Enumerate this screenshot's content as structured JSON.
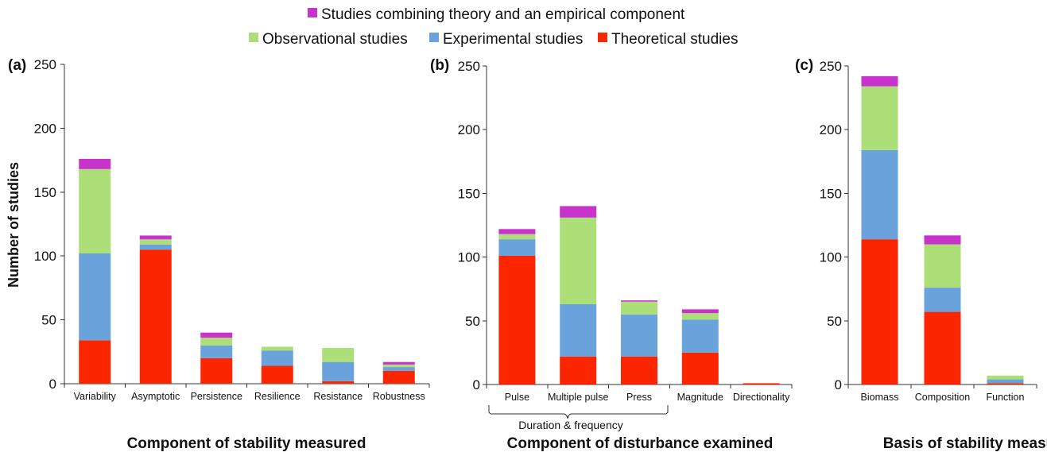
{
  "legend": [
    {
      "label": "Studies combining theory and an empirical component",
      "color": "#c833cc"
    },
    {
      "label": "Observational studies",
      "color": "#addf79"
    },
    {
      "label": "Experimental studies",
      "color": "#6aa2dc"
    },
    {
      "label": "Theoretical studies",
      "color": "#fb2600"
    }
  ],
  "ylabel": "Number of studies",
  "brace_label": "Duration & frequency",
  "chart_data": [
    {
      "type": "bar",
      "stacked": true,
      "panel_label": "(a)",
      "xlabel": "Component of stability measured",
      "ylabel": "Number of studies",
      "ylim": [
        0,
        250
      ],
      "yticks": [
        "0",
        "50",
        "100",
        "150",
        "200",
        "250"
      ],
      "categories": [
        "Variability",
        "Asymptotic",
        "Persistence",
        "Resilience",
        "Resistance",
        "Robustness"
      ],
      "series": [
        {
          "name": "Theoretical studies",
          "values": [
            34,
            105,
            20,
            14,
            2,
            10
          ]
        },
        {
          "name": "Experimental studies",
          "values": [
            68,
            4,
            10,
            12,
            15,
            3
          ]
        },
        {
          "name": "Observational studies",
          "values": [
            66,
            4,
            6,
            3,
            11,
            2
          ]
        },
        {
          "name": "Studies combining theory and an empirical component",
          "values": [
            8,
            3,
            4,
            0,
            0,
            2
          ]
        }
      ]
    },
    {
      "type": "bar",
      "stacked": true,
      "panel_label": "(b)",
      "xlabel": "Component of disturbance examined",
      "ylim": [
        0,
        250
      ],
      "yticks": [
        "0",
        "50",
        "100",
        "150",
        "200",
        "250"
      ],
      "categories": [
        "Pulse",
        "Multiple pulse",
        "Press",
        "Magnitude",
        "Directionality"
      ],
      "series": [
        {
          "name": "Theoretical studies",
          "values": [
            101,
            22,
            22,
            25,
            1
          ]
        },
        {
          "name": "Experimental studies",
          "values": [
            13,
            41,
            33,
            26,
            0
          ]
        },
        {
          "name": "Observational studies",
          "values": [
            4,
            68,
            10,
            5,
            0
          ]
        },
        {
          "name": "Studies combining theory and an empirical component",
          "values": [
            4,
            9,
            1,
            3,
            0
          ]
        }
      ]
    },
    {
      "type": "bar",
      "stacked": true,
      "panel_label": "(c)",
      "xlabel": "Basis of stability measure",
      "ylim": [
        0,
        250
      ],
      "yticks": [
        "0",
        "50",
        "100",
        "150",
        "200",
        "250"
      ],
      "categories": [
        "Biomass",
        "Composition",
        "Function"
      ],
      "series": [
        {
          "name": "Theoretical studies",
          "values": [
            114,
            57,
            1
          ]
        },
        {
          "name": "Experimental studies",
          "values": [
            70,
            19,
            3
          ]
        },
        {
          "name": "Observational studies",
          "values": [
            50,
            34,
            3
          ]
        },
        {
          "name": "Studies combining theory and an empirical component",
          "values": [
            8,
            7,
            0
          ]
        }
      ]
    }
  ]
}
